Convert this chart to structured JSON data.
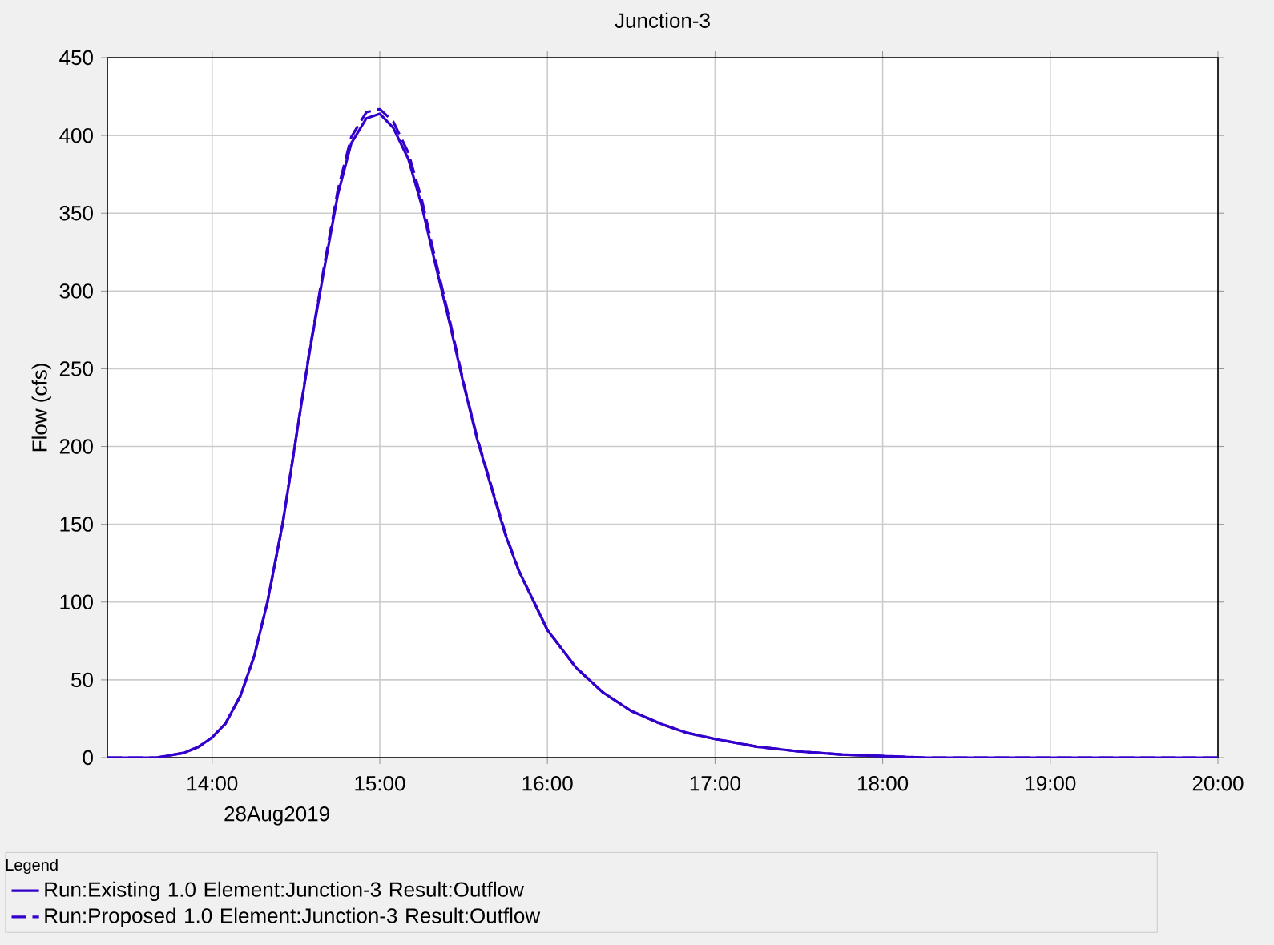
{
  "chart_data": {
    "type": "line",
    "title": "Junction-3",
    "ylabel": "Flow (cfs)",
    "legend_title": "Legend",
    "legend": "bottom",
    "grid": true,
    "marker": "none",
    "annotations": [
      "28Aug2019"
    ],
    "xlim": [
      13.375,
      20
    ],
    "ylim": [
      0,
      450
    ],
    "xticks": [
      {
        "value": 14,
        "label": "14:00"
      },
      {
        "value": 15,
        "label": "15:00"
      },
      {
        "value": 16,
        "label": "16:00"
      },
      {
        "value": 17,
        "label": "17:00"
      },
      {
        "value": 18,
        "label": "18:00"
      },
      {
        "value": 19,
        "label": "19:00"
      },
      {
        "value": 20,
        "label": "20:00"
      }
    ],
    "yticks": [
      0,
      50,
      100,
      150,
      200,
      250,
      300,
      350,
      400,
      450
    ],
    "x": [
      13.375,
      13.67,
      13.83,
      13.92,
      14.0,
      14.08,
      14.17,
      14.25,
      14.33,
      14.42,
      14.5,
      14.58,
      14.67,
      14.75,
      14.83,
      14.92,
      15.0,
      15.08,
      15.17,
      15.25,
      15.33,
      15.42,
      15.5,
      15.58,
      15.67,
      15.75,
      15.83,
      15.92,
      16.0,
      16.17,
      16.33,
      16.5,
      16.67,
      16.83,
      17.0,
      17.25,
      17.5,
      17.75,
      18.0,
      18.25,
      18.5,
      20
    ],
    "series": [
      {
        "name": "Run:Existing 1.0 Element:Junction-3 Result:Outflow",
        "color": "#3300cc",
        "line_style": "solid",
        "values": [
          0,
          0,
          3,
          7,
          13,
          22,
          40,
          65,
          100,
          150,
          205,
          260,
          315,
          362,
          395,
          411,
          414,
          405,
          385,
          355,
          318,
          278,
          240,
          205,
          172,
          143,
          120,
          100,
          82,
          58,
          42,
          30,
          22,
          16,
          12,
          7,
          4,
          2,
          1,
          0,
          0,
          0
        ]
      },
      {
        "name": "Run:Proposed 1.0 Element:Junction-3 Result:Outflow",
        "color": "#3300cc",
        "line_style": "dashed",
        "values": [
          0,
          0,
          3,
          7,
          13,
          22,
          40,
          65,
          100,
          150,
          205,
          261,
          317,
          365,
          399,
          415,
          417,
          409,
          389,
          359,
          321,
          280,
          241,
          206,
          173,
          144,
          120,
          100,
          82,
          58,
          42,
          30,
          22,
          16,
          12,
          7,
          4,
          2,
          1,
          0,
          0,
          0
        ]
      }
    ]
  }
}
